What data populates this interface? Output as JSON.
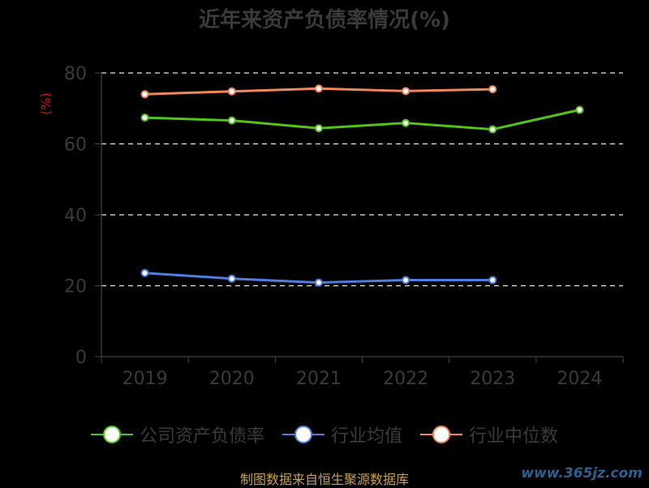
{
  "title": "近年来资产负债率情况(%)",
  "source": "制图数据来自恒生聚源数据库",
  "watermark": "www.365jz.com",
  "chart_data": {
    "type": "line",
    "categories": [
      "2019",
      "2020",
      "2021",
      "2022",
      "2023",
      "2024"
    ],
    "ylabel": "(%)",
    "ylim": [
      0,
      80
    ],
    "yticks": [
      0,
      20,
      40,
      60,
      80
    ],
    "grid": true,
    "legend_position": "bottom",
    "series": [
      {
        "name": "公司资产负债率",
        "color": "#52c41a",
        "values": [
          67.4,
          66.6,
          64.4,
          65.9,
          64.1,
          69.6
        ]
      },
      {
        "name": "行业均值",
        "color": "#4e7fe0",
        "values": [
          23.6,
          22.0,
          20.9,
          21.6,
          21.6,
          null
        ]
      },
      {
        "name": "行业中位数",
        "color": "#f4875a",
        "values": [
          74.0,
          74.8,
          75.6,
          74.9,
          75.4,
          null
        ]
      }
    ]
  }
}
